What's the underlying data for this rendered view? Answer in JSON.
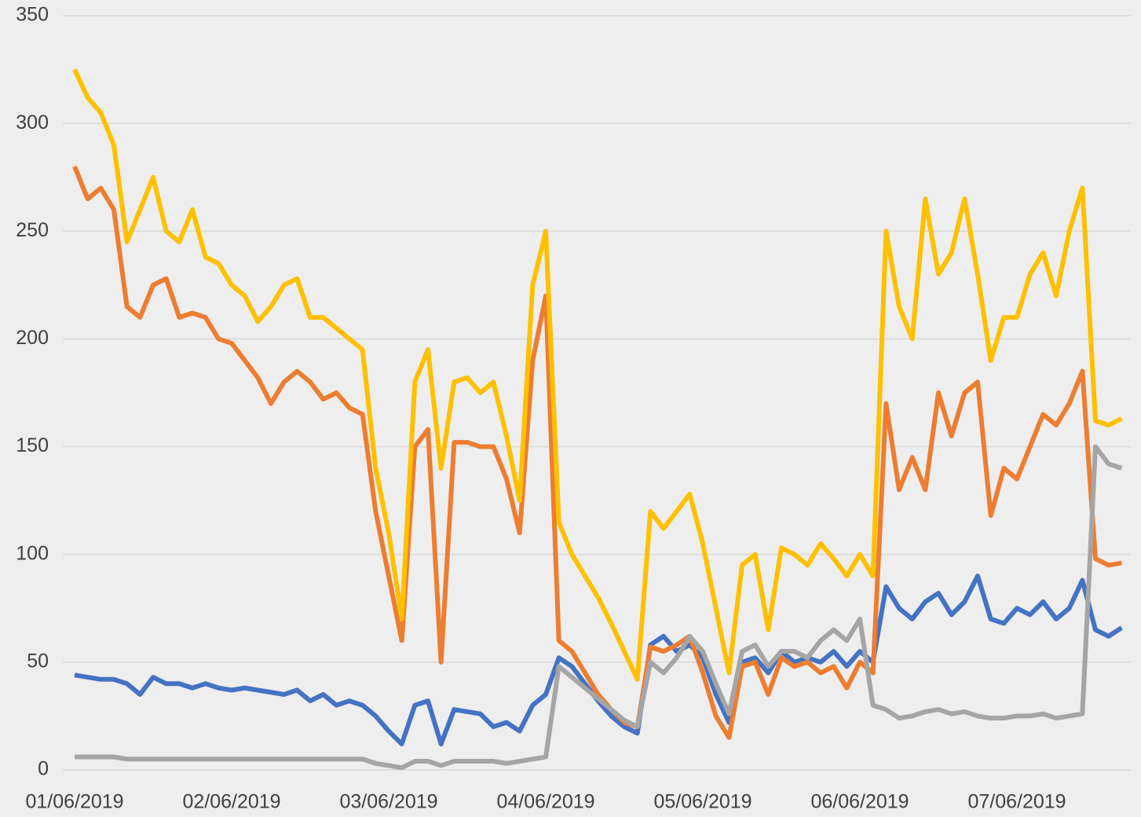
{
  "chart_data": {
    "type": "line",
    "categories": [
      "01/06/2019",
      null,
      null,
      null,
      null,
      null,
      null,
      null,
      null,
      null,
      null,
      null,
      "02/06/2019",
      null,
      null,
      null,
      null,
      null,
      null,
      null,
      null,
      null,
      null,
      null,
      "03/06/2019",
      null,
      null,
      null,
      null,
      null,
      null,
      null,
      null,
      null,
      null,
      null,
      "04/06/2019",
      null,
      null,
      null,
      null,
      null,
      null,
      null,
      null,
      null,
      null,
      null,
      "05/06/2019",
      null,
      null,
      null,
      null,
      null,
      null,
      null,
      null,
      null,
      null,
      null,
      "06/06/2019",
      null,
      null,
      null,
      null,
      null,
      null,
      null,
      null,
      null,
      null,
      null,
      "07/06/2019",
      null,
      null,
      null,
      null,
      null,
      null,
      null,
      null
    ],
    "series": [
      {
        "color": "#4472c4",
        "values": [
          44,
          43,
          42,
          42,
          40,
          35,
          43,
          40,
          40,
          38,
          40,
          38,
          37,
          38,
          37,
          36,
          35,
          37,
          32,
          35,
          30,
          32,
          30,
          25,
          18,
          12,
          30,
          32,
          12,
          28,
          27,
          26,
          20,
          22,
          18,
          30,
          35,
          52,
          48,
          40,
          32,
          25,
          20,
          17,
          58,
          62,
          55,
          58,
          52,
          35,
          22,
          50,
          52,
          45,
          55,
          50,
          52,
          50,
          55,
          48,
          55,
          50,
          85,
          75,
          70,
          78,
          82,
          72,
          78,
          90,
          70,
          68,
          75,
          72,
          78,
          70,
          75,
          88,
          65,
          62,
          66
        ]
      },
      {
        "color": "#ed7d31",
        "values": [
          280,
          265,
          270,
          260,
          215,
          210,
          225,
          228,
          210,
          212,
          210,
          200,
          198,
          190,
          182,
          170,
          180,
          185,
          180,
          172,
          175,
          168,
          165,
          120,
          90,
          60,
          150,
          158,
          50,
          152,
          152,
          150,
          150,
          135,
          110,
          190,
          220,
          60,
          55,
          45,
          35,
          28,
          22,
          20,
          57,
          55,
          58,
          62,
          45,
          25,
          15,
          48,
          50,
          35,
          52,
          48,
          50,
          45,
          48,
          38,
          50,
          45,
          170,
          130,
          145,
          130,
          175,
          155,
          175,
          180,
          118,
          140,
          135,
          150,
          165,
          160,
          170,
          185,
          98,
          95,
          96
        ]
      },
      {
        "color": "#a5a5a5",
        "values": [
          6,
          6,
          6,
          6,
          5,
          5,
          5,
          5,
          5,
          5,
          5,
          5,
          5,
          5,
          5,
          5,
          5,
          5,
          5,
          5,
          5,
          5,
          5,
          3,
          2,
          1,
          4,
          4,
          2,
          4,
          4,
          4,
          4,
          3,
          4,
          5,
          6,
          48,
          43,
          38,
          33,
          28,
          23,
          20,
          50,
          45,
          52,
          62,
          55,
          40,
          26,
          55,
          58,
          48,
          55,
          55,
          52,
          60,
          65,
          60,
          70,
          30,
          28,
          24,
          25,
          27,
          28,
          26,
          27,
          25,
          24,
          24,
          25,
          25,
          26,
          24,
          25,
          26,
          150,
          142,
          140
        ]
      },
      {
        "color": "#ffc000",
        "values": [
          325,
          312,
          305,
          290,
          245,
          260,
          275,
          250,
          245,
          260,
          238,
          235,
          225,
          220,
          208,
          215,
          225,
          228,
          210,
          210,
          205,
          200,
          195,
          140,
          110,
          70,
          180,
          195,
          140,
          180,
          182,
          175,
          180,
          155,
          125,
          225,
          250,
          115,
          100,
          90,
          80,
          68,
          55,
          42,
          120,
          112,
          120,
          128,
          105,
          75,
          45,
          95,
          100,
          65,
          103,
          100,
          95,
          105,
          98,
          90,
          100,
          90,
          250,
          215,
          200,
          265,
          230,
          240,
          265,
          230,
          190,
          210,
          210,
          230,
          240,
          220,
          250,
          270,
          162,
          160,
          163
        ]
      }
    ],
    "ylim": [
      0,
      350
    ],
    "yticks": [
      0,
      50,
      100,
      150,
      200,
      250,
      300,
      350
    ],
    "grid": true
  }
}
